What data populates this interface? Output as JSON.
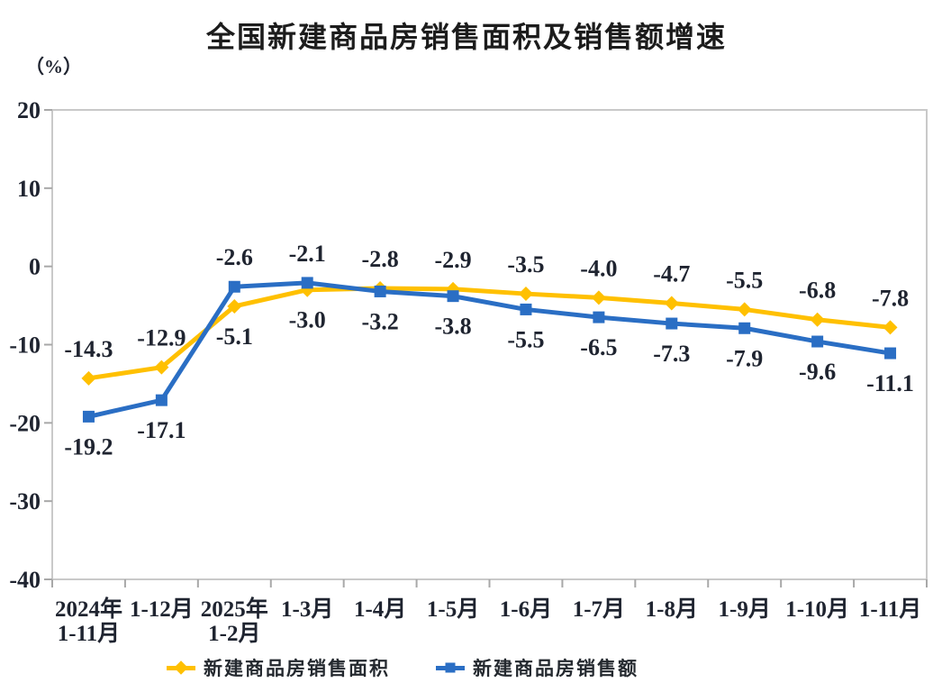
{
  "title": "全国新建商品房销售面积及销售额增速",
  "unit_label": "（%）",
  "colors": {
    "accent_yellow": "#FFC000",
    "accent_blue": "#2A6EC4",
    "frame": "#C9C9C9",
    "tick": "#A8A8A8",
    "text": "#1F2430"
  },
  "chart_data": {
    "type": "line",
    "title": "全国新建商品房销售面积及销售额增速",
    "xlabel": "",
    "ylabel": "（%）",
    "categories": [
      "2024年\n1-11月",
      "1-12月",
      "2025年\n1-2月",
      "1-3月",
      "1-4月",
      "1-5月",
      "1-6月",
      "1-7月",
      "1-8月",
      "1-9月",
      "1-10月",
      "1-11月"
    ],
    "series": [
      {
        "name": "新建商品房销售面积",
        "color": "#FFC000",
        "marker": "diamond",
        "values": [
          -14.3,
          -12.9,
          -5.1,
          -3.0,
          -2.8,
          -2.9,
          -3.5,
          -4.0,
          -4.7,
          -5.5,
          -6.8,
          -7.8
        ]
      },
      {
        "name": "新建商品房销售额",
        "color": "#2A6EC4",
        "marker": "square",
        "values": [
          -19.2,
          -17.1,
          -2.6,
          -2.1,
          -3.2,
          -3.8,
          -5.5,
          -6.5,
          -7.3,
          -7.9,
          -9.6,
          -11.1
        ]
      }
    ],
    "y_axis": {
      "min": -40,
      "max": 20,
      "step": 10,
      "ticks": [
        "20",
        "10",
        "0",
        "-10",
        "-20",
        "-30",
        "-40"
      ]
    },
    "grid": false,
    "data_labels": true,
    "label_decimals": 1,
    "legend_position": "bottom"
  }
}
